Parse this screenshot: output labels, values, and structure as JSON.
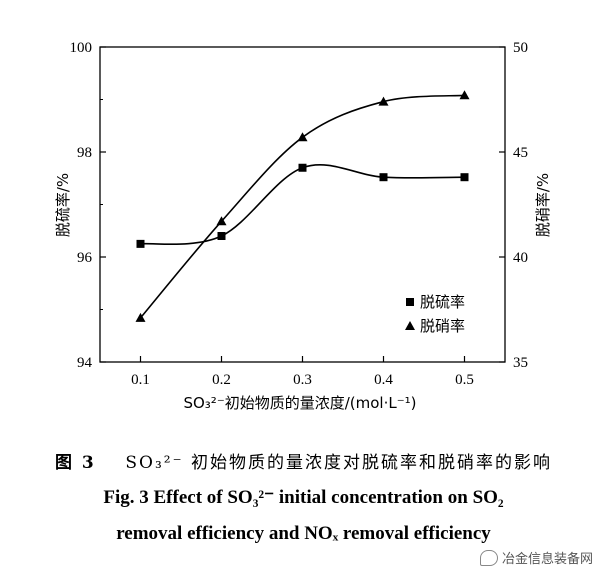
{
  "chart_data": {
    "type": "line",
    "x": [
      0.1,
      0.2,
      0.3,
      0.4,
      0.5
    ],
    "xlabel": "SO₃²⁻初始物质的量浓度/(mol·L⁻¹)",
    "xticks": [
      "0.1",
      "0.2",
      "0.3",
      "0.4",
      "0.5"
    ],
    "xlim": [
      0.05,
      0.55
    ],
    "ylabel_left": "脱硫率/%",
    "ylim_left": [
      94,
      100
    ],
    "yticks_left": [
      "94",
      "96",
      "98",
      "100"
    ],
    "ylabel_right": "脱硝率/%",
    "ylim_right": [
      35,
      50
    ],
    "yticks_right": [
      "35",
      "40",
      "45",
      "50"
    ],
    "series": [
      {
        "name": "脱硫率",
        "marker": "square",
        "axis": "left",
        "values": [
          96.25,
          96.4,
          97.7,
          97.52,
          97.52
        ]
      },
      {
        "name": "脱硝率",
        "marker": "triangle",
        "axis": "right",
        "values": [
          37.1,
          41.7,
          45.7,
          47.4,
          47.7
        ]
      }
    ],
    "legend_position": "bottom-right",
    "grid": false
  },
  "caption": {
    "cn_prefix": "图 3",
    "cn_text": "SO₃²⁻ 初始物质的量浓度对脱硫率和脱硝率的影响",
    "en_line1": "Fig. 3   Effect of SO₃²⁻ initial concentration on SO₂",
    "en_line2": "removal efficiency and NOₓ removal efficiency"
  },
  "watermark": {
    "text": "冶金信息装备网",
    "icon": "wechat-icon"
  }
}
